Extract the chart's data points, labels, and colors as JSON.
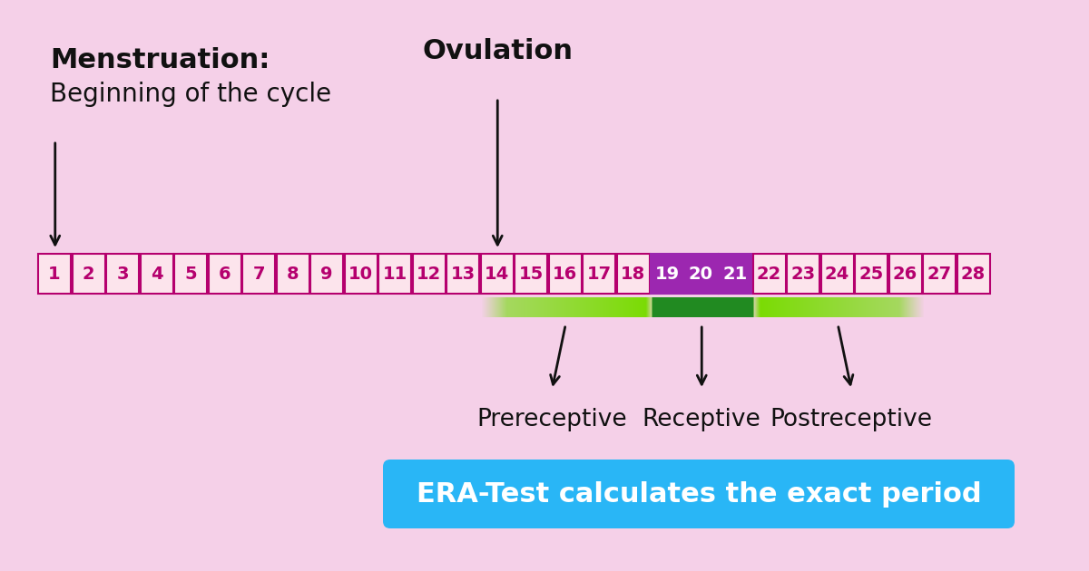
{
  "background_color": "#f5d0e8",
  "title_menstruation": "Menstruation:",
  "subtitle_menstruation": "Beginning of the cycle",
  "title_ovulation": "Ovulation",
  "num_days": 28,
  "receptive_days": [
    19,
    20,
    21
  ],
  "cell_normal_bg": "#fce4ec",
  "cell_normal_border": "#b5006e",
  "cell_normal_text": "#b5006e",
  "cell_receptive_bg": "#9c27b0",
  "cell_receptive_border": "#9c27b0",
  "cell_receptive_text": "#ffffff",
  "bar_light_green": "#8bc34a",
  "bar_dark_green": "#2e7d32",
  "label_prereceptive": "Prereceptive",
  "label_receptive": "Receptive",
  "label_postreceptive": "Postreceptive",
  "era_box_color": "#29b6f6",
  "era_text": "ERA-Test calculates the exact period",
  "era_text_color": "#ffffff",
  "arrow_color": "#111111",
  "label_fontsize": 19,
  "era_fontsize": 22,
  "ovulation_fontsize": 22,
  "menstruation_title_fontsize": 22,
  "menstruation_sub_fontsize": 20,
  "day_fontsize": 14,
  "fig_width": 12.0,
  "fig_height": 6.3,
  "dpi": 100
}
